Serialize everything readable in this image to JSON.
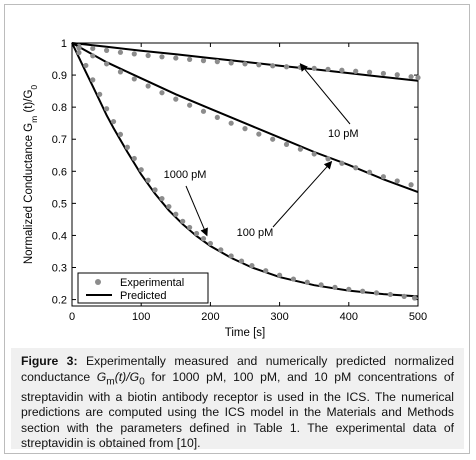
{
  "chart_data": {
    "type": "line",
    "xlabel": "Time [s]",
    "ylabel": "Normalized Conductance G_m (t)/G_0",
    "xlim": [
      0,
      500
    ],
    "ylim": [
      0.18,
      1.0
    ],
    "xticks": [
      "0",
      "100",
      "200",
      "300",
      "400",
      "500"
    ],
    "yticks": [
      "0.2",
      "0.3",
      "0.4",
      "0.5",
      "0.6",
      "0.7",
      "0.8",
      "0.9",
      "1"
    ],
    "legend": {
      "placement": "bottom-left",
      "entries": [
        {
          "label": "Experimental",
          "marker": "dot"
        },
        {
          "label": "Predicted",
          "marker": "line"
        }
      ]
    },
    "annotations": [
      {
        "text": "10 pM",
        "arrow_to": [
          330,
          0.935
        ]
      },
      {
        "text": "100 pM",
        "arrow_to": [
          375,
          0.63
        ]
      },
      {
        "text": "1000 pM",
        "arrow_to": [
          195,
          0.4
        ]
      }
    ],
    "series": [
      {
        "curve": "10 pM",
        "role": "Predicted",
        "x": [
          0,
          50,
          100,
          150,
          200,
          250,
          300,
          350,
          400,
          450,
          500
        ],
        "y": [
          1.0,
          0.988,
          0.976,
          0.965,
          0.953,
          0.941,
          0.929,
          0.918,
          0.906,
          0.894,
          0.882
        ]
      },
      {
        "curve": "10 pM",
        "role": "Experimental",
        "x": [
          10,
          30,
          50,
          70,
          90,
          110,
          130,
          150,
          170,
          190,
          210,
          230,
          250,
          270,
          290,
          310,
          330,
          350,
          370,
          390,
          410,
          430,
          450,
          470,
          490,
          500
        ],
        "y": [
          0.99,
          0.983,
          0.977,
          0.971,
          0.966,
          0.961,
          0.957,
          0.953,
          0.949,
          0.945,
          0.942,
          0.938,
          0.935,
          0.932,
          0.929,
          0.926,
          0.924,
          0.921,
          0.918,
          0.915,
          0.912,
          0.909,
          0.905,
          0.901,
          0.895,
          0.892
        ]
      },
      {
        "curve": "100 pM",
        "role": "Predicted",
        "x": [
          0,
          25,
          50,
          75,
          100,
          150,
          200,
          250,
          300,
          350,
          400,
          450,
          500
        ],
        "y": [
          1.0,
          0.97,
          0.94,
          0.915,
          0.89,
          0.84,
          0.795,
          0.75,
          0.705,
          0.66,
          0.62,
          0.575,
          0.535
        ]
      },
      {
        "curve": "100 pM",
        "role": "Experimental",
        "x": [
          10,
          30,
          50,
          70,
          90,
          110,
          130,
          150,
          170,
          190,
          210,
          230,
          250,
          270,
          290,
          310,
          330,
          350,
          370,
          390,
          410,
          430,
          450,
          470,
          490
        ],
        "y": [
          0.985,
          0.96,
          0.935,
          0.91,
          0.888,
          0.866,
          0.845,
          0.825,
          0.806,
          0.787,
          0.768,
          0.75,
          0.733,
          0.716,
          0.7,
          0.684,
          0.669,
          0.654,
          0.639,
          0.625,
          0.611,
          0.597,
          0.583,
          0.57,
          0.558
        ]
      },
      {
        "curve": "1000 pM",
        "role": "Predicted",
        "x": [
          0,
          10,
          20,
          30,
          40,
          50,
          60,
          80,
          100,
          120,
          140,
          160,
          180,
          200,
          230,
          260,
          300,
          350,
          400,
          450,
          500
        ],
        "y": [
          1.0,
          0.955,
          0.91,
          0.865,
          0.82,
          0.775,
          0.735,
          0.66,
          0.59,
          0.53,
          0.478,
          0.435,
          0.398,
          0.367,
          0.33,
          0.3,
          0.27,
          0.245,
          0.228,
          0.217,
          0.21
        ]
      },
      {
        "curve": "1000 pM",
        "role": "Experimental",
        "x": [
          10,
          20,
          30,
          40,
          50,
          60,
          70,
          80,
          90,
          100,
          110,
          120,
          130,
          140,
          150,
          160,
          170,
          180,
          190,
          200,
          215,
          230,
          245,
          260,
          280,
          300,
          320,
          340,
          360,
          380,
          400,
          420,
          440,
          460,
          480,
          495
        ],
        "y": [
          0.97,
          0.93,
          0.885,
          0.84,
          0.795,
          0.755,
          0.715,
          0.675,
          0.64,
          0.605,
          0.572,
          0.542,
          0.515,
          0.49,
          0.466,
          0.444,
          0.425,
          0.406,
          0.39,
          0.375,
          0.355,
          0.336,
          0.32,
          0.306,
          0.29,
          0.276,
          0.264,
          0.254,
          0.246,
          0.238,
          0.232,
          0.226,
          0.221,
          0.216,
          0.21,
          0.205
        ]
      }
    ]
  },
  "caption": {
    "label": "Figure 3:",
    "seg1": " Experimentally measured and numerically predicted normalized conductance ",
    "g": "G",
    "m_sub": "m",
    "t": "(t)/",
    "g0": "G",
    "zero_sub": "0",
    "seg2": " for 1000 pM, 100 pM, and 10 pM concentrations of streptavidin with a biotin antibody receptor is used in the ICS. The numerical predictions are computed using the ICS model in the Materials and Methods section with the parameters defined in Table 1. The experimental data of streptavidin is obtained from [10]."
  },
  "colors": {
    "experimental": "#8c8c8c",
    "predicted": "#000000",
    "caption_bg": "#f0f0f0"
  }
}
